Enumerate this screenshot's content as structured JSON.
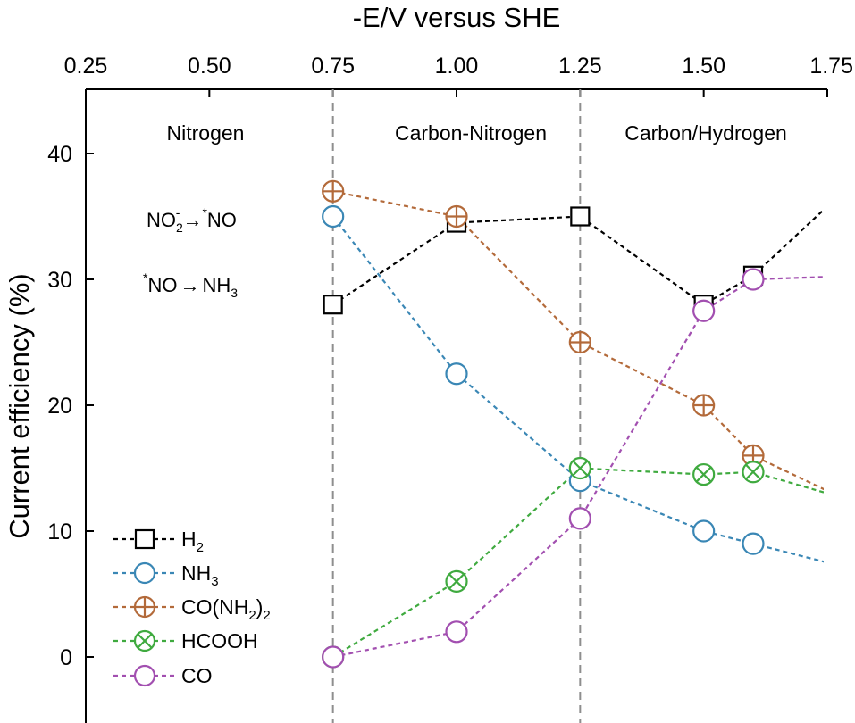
{
  "chart_data": {
    "type": "line",
    "xlabel": "-E/V versus SHE",
    "ylabel": "Current efficiency (%)",
    "xlim": [
      0.25,
      1.75
    ],
    "ylim": [
      -4.5,
      47
    ],
    "x_axis_position": "top",
    "x_ticks": [
      "0.25",
      "0.50",
      "0.75",
      "1.00",
      "1.25",
      "1.50",
      "1.75"
    ],
    "y_ticks": [
      "0",
      "10",
      "20",
      "30",
      "40"
    ],
    "grid": false,
    "legend_position": "bottom-left",
    "vertical_lines": [
      0.75,
      1.25
    ],
    "regions": [
      "Nitrogen",
      "Carbon-Nitrogen",
      "Carbon/Hydrogen"
    ],
    "annotations": {
      "step1": {
        "lhs_base": "NO",
        "lhs_sub": "2",
        "lhs_sup": "-",
        "arrow": "→",
        "rhs_sup": "*",
        "rhs_base": "NO"
      },
      "step2": {
        "lhs_sup": "*",
        "lhs_base": "NO",
        "arrow": "→",
        "rhs_base": "NH",
        "rhs_sub": "3"
      }
    },
    "series": [
      {
        "name": "H",
        "name_sub": "2",
        "marker": "square",
        "color": "#000000",
        "x": [
          0.75,
          1.0,
          1.25,
          1.5,
          1.6
        ],
        "y": [
          28,
          34.5,
          35,
          28,
          30.3
        ],
        "tail": [
          1.75,
          35.8
        ]
      },
      {
        "name": "NH",
        "name_sub": "3",
        "marker": "circle",
        "color": "#3a87b5",
        "x": [
          0.75,
          1.0,
          1.25,
          1.5,
          1.6
        ],
        "y": [
          35,
          22.5,
          14,
          10,
          9
        ],
        "tail": [
          1.75,
          7.5
        ]
      },
      {
        "name": "CO(NH",
        "name_sub": "2",
        "name_suffix": ")",
        "name_suffix_sub": "2",
        "marker": "circle-plus",
        "color": "#b36a3a",
        "x": [
          0.75,
          1.0,
          1.25,
          1.5,
          1.6
        ],
        "y": [
          37,
          35,
          25,
          20,
          16
        ],
        "tail": [
          1.75,
          13.2
        ]
      },
      {
        "name": "HCOOH",
        "marker": "circle-x",
        "color": "#3faa3f",
        "x": [
          0.75,
          1.0,
          1.25,
          1.5,
          1.6
        ],
        "y": [
          0,
          6,
          15,
          14.5,
          14.7
        ],
        "tail": [
          1.75,
          13
        ]
      },
      {
        "name": "CO",
        "marker": "circle",
        "color": "#a24fb0",
        "x": [
          0.75,
          1.0,
          1.25,
          1.5,
          1.6
        ],
        "y": [
          0,
          2,
          11,
          27.5,
          30
        ],
        "tail": [
          1.75,
          30.2
        ]
      }
    ]
  }
}
